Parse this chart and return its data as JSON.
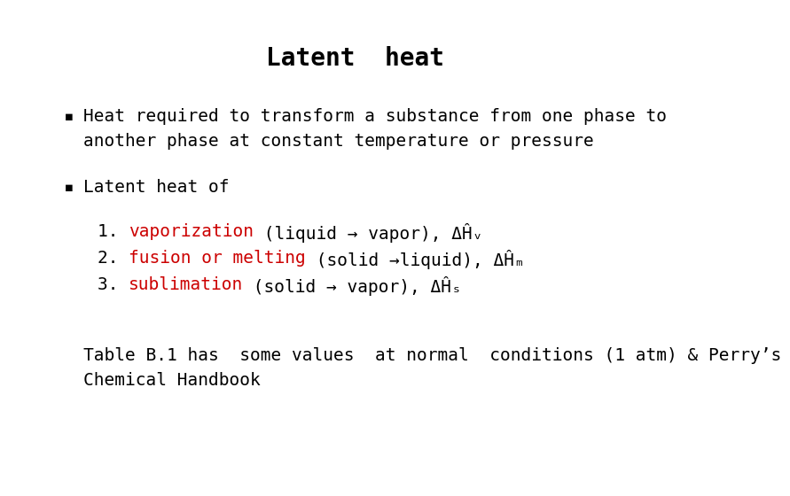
{
  "title": "Latent  heat",
  "background_color": "#ffffff",
  "text_color": "#000000",
  "red_color": "#cc0000",
  "title_fontsize": 20,
  "body_fontsize": 14,
  "small_fontsize": 11,
  "bullet_char": "▪  ",
  "bullet1_line1": "Heat required to transform a substance from one phase to",
  "bullet1_line2": "another phase at constant temperature or pressure",
  "bullet2": "Latent heat of",
  "item1_num": "1. ",
  "item1_red": "vaporization",
  "item1_black": " (liquid → vapor), ΔĤᵥ",
  "item2_num": "2. ",
  "item2_red": "fusion or melting",
  "item2_black": " (solid →liquid), ΔĤₘ",
  "item3_num": "3. ",
  "item3_red": "sublimation",
  "item3_black": " (solid → vapor), ΔĤₛ",
  "table_line1": "Table B.1 has  some values  at normal  conditions (1 atm) & Perry’s",
  "table_line2": "Chemical Handbook"
}
